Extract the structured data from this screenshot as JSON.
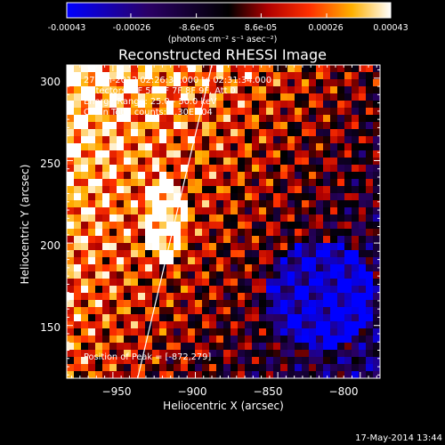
{
  "colorbar": {
    "ticks": [
      "-0.00043",
      "-0.00026",
      "-8.6e-05",
      "8.6e-05",
      "0.00026",
      "0.00043"
    ],
    "unit_text": "(photons cm⁻² s⁻¹ asec⁻²)"
  },
  "info_lines": [
    "27-Jun-2012 02:26:32.000 to 02:31:34.000",
    "Detectors: 3F 5F 6F 7F 8F 9F, Att 0",
    "Energy Range: 25.0 - 50.0 keV",
    "Clean    Total counts: 1.30E+04"
  ],
  "peak_text": "Position of Peak = [-872,279]",
  "footer_date": "17-May-2014 13:44",
  "chart_data": {
    "type": "heatmap",
    "title": "Reconstructed RHESSI Image",
    "xlabel": "Heliocentric X (arcsec)",
    "ylabel": "Heliocentric Y (arcsec)",
    "xlim": [
      -978,
      -788
    ],
    "ylim": [
      118,
      308
    ],
    "x_ticks": [
      -950,
      -900,
      -850,
      -800
    ],
    "y_ticks": [
      150,
      200,
      250,
      300
    ],
    "x_tick_labels": [
      "−950",
      "−900",
      "−850",
      "−800"
    ],
    "y_tick_labels": [
      "150",
      "200",
      "250",
      "300"
    ],
    "color_range": [
      -0.00043,
      0.00043
    ],
    "colormap": "blue-black-red-yellow-white",
    "limb_line": [
      [
        -935,
        118
      ],
      [
        -890,
        308
      ]
    ],
    "peak": [
      -872,
      279
    ]
  }
}
